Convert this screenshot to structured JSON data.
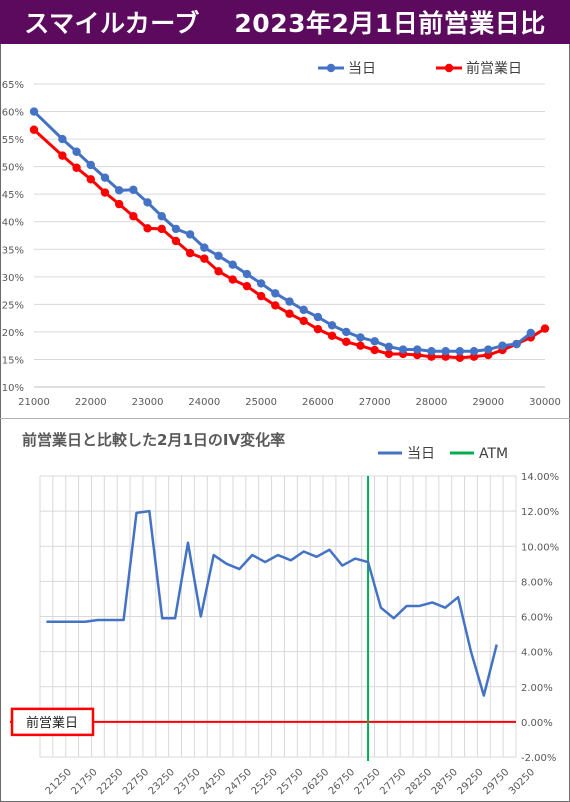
{
  "page": {
    "title": "スマイルカーブ　 2023年2月1日前営業日比"
  },
  "colors": {
    "title_bg": "#5b0a5e",
    "today": "#4472c4",
    "prev": "#ff0000",
    "atm": "#00b050",
    "grid": "#d9d9d9"
  },
  "chart_data": [
    {
      "type": "line",
      "title": "",
      "xlabel": "",
      "ylabel": "",
      "xlim": [
        21000,
        30000
      ],
      "ylim": [
        0.1,
        0.65
      ],
      "x_ticks": [
        "21000",
        "22000",
        "23000",
        "24000",
        "25000",
        "26000",
        "27000",
        "28000",
        "29000",
        "30000"
      ],
      "y_ticks": [
        "10%",
        "15%",
        "20%",
        "25%",
        "30%",
        "35%",
        "40%",
        "45%",
        "50%",
        "55%",
        "60%",
        "65%"
      ],
      "legend_position": "top-right",
      "grid": true,
      "series": [
        {
          "name": "当日",
          "color": "#4472c4",
          "x": [
            21000,
            21500,
            21750,
            22000,
            22250,
            22500,
            22750,
            23000,
            23250,
            23500,
            23750,
            24000,
            24250,
            24500,
            24750,
            25000,
            25250,
            25500,
            25750,
            26000,
            26250,
            26500,
            26750,
            27000,
            27250,
            27500,
            27750,
            28000,
            28250,
            28500,
            28750,
            29000,
            29250,
            29500,
            29750
          ],
          "y": [
            0.6,
            0.55,
            0.527,
            0.503,
            0.48,
            0.457,
            0.458,
            0.435,
            0.41,
            0.387,
            0.377,
            0.353,
            0.338,
            0.322,
            0.305,
            0.288,
            0.27,
            0.255,
            0.24,
            0.227,
            0.212,
            0.2,
            0.19,
            0.183,
            0.173,
            0.168,
            0.168,
            0.165,
            0.165,
            0.165,
            0.165,
            0.168,
            0.175,
            0.178,
            0.198
          ]
        },
        {
          "name": "前営業日",
          "color": "#ff0000",
          "x": [
            21000,
            21500,
            21750,
            22000,
            22250,
            22500,
            22750,
            23000,
            23250,
            23500,
            23750,
            24000,
            24250,
            24500,
            24750,
            25000,
            25250,
            25500,
            25750,
            26000,
            26250,
            26500,
            26750,
            27000,
            27250,
            27500,
            27750,
            28000,
            28250,
            28500,
            28750,
            29000,
            29250,
            29500,
            29750,
            30000
          ],
          "y": [
            0.567,
            0.52,
            0.498,
            0.477,
            0.453,
            0.432,
            0.41,
            0.388,
            0.387,
            0.365,
            0.343,
            0.333,
            0.31,
            0.295,
            0.283,
            0.265,
            0.248,
            0.233,
            0.22,
            0.205,
            0.193,
            0.182,
            0.175,
            0.167,
            0.16,
            0.16,
            0.158,
            0.155,
            0.155,
            0.153,
            0.155,
            0.158,
            0.167,
            0.178,
            0.19,
            0.206
          ]
        }
      ]
    },
    {
      "type": "line",
      "title": "前営業日と比較した2月1日のIV変化率",
      "xlabel": "",
      "ylabel": "",
      "ylim": [
        -0.02,
        0.14
      ],
      "x_ticks": [
        "21250",
        "21750",
        "22250",
        "22750",
        "23250",
        "23750",
        "24250",
        "24750",
        "25250",
        "25750",
        "26250",
        "26750",
        "27250",
        "27750",
        "28250",
        "28750",
        "29250",
        "29750",
        "30250"
      ],
      "y_ticks": [
        "-2.00%",
        "0.00%",
        "2.00%",
        "4.00%",
        "6.00%",
        "8.00%",
        "10.00%",
        "12.00%",
        "14.00%"
      ],
      "legend_position": "top-right",
      "grid": true,
      "baseline_label": "前営業日",
      "series": [
        {
          "name": "当日",
          "color": "#4472c4",
          "categories": [
            "21250",
            "21500",
            "21750",
            "22000",
            "22250",
            "22500",
            "22750",
            "23000",
            "23250",
            "23500",
            "23750",
            "24000",
            "24250",
            "24500",
            "24750",
            "25000",
            "25250",
            "25500",
            "25750",
            "26000",
            "26250",
            "26500",
            "26750",
            "27000",
            "27250",
            "27500",
            "27750",
            "28000",
            "28250",
            "28500",
            "28750",
            "29000",
            "29250",
            "29500",
            "29750",
            "30000",
            "30250"
          ],
          "values": [
            0.057,
            0.057,
            0.057,
            0.057,
            0.058,
            0.058,
            0.058,
            0.119,
            0.12,
            0.059,
            0.059,
            0.102,
            0.06,
            0.095,
            0.09,
            0.087,
            0.095,
            0.091,
            0.095,
            0.092,
            0.097,
            0.094,
            0.098,
            0.089,
            0.093,
            0.091,
            0.065,
            0.059,
            0.066,
            0.066,
            0.068,
            0.065,
            0.071,
            0.04,
            0.015,
            0.044,
            null
          ]
        },
        {
          "name": "ATM",
          "color": "#00b050",
          "atm_category": "27500"
        }
      ]
    }
  ]
}
